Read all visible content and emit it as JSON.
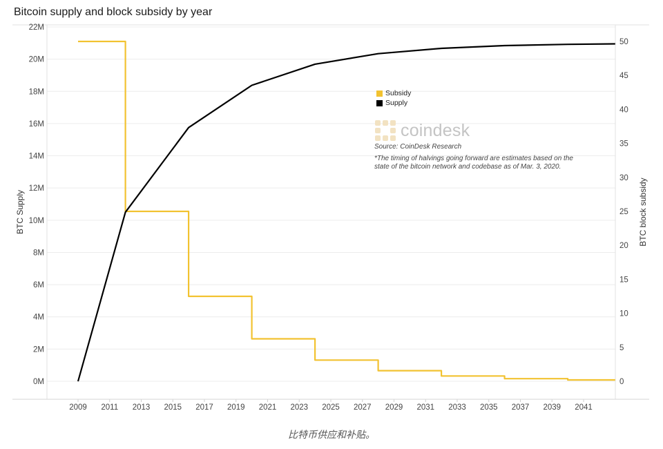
{
  "chart_data": {
    "type": "line",
    "title": "Bitcoin supply and block subsidy by year",
    "ylabel": "BTC Supply",
    "y2label": "BTC block subsidy",
    "xlim": [
      2008,
      2043
    ],
    "ylim": [
      0,
      22
    ],
    "y2lim": [
      0,
      50
    ],
    "x_ticks": [
      "2009",
      "2011",
      "2013",
      "2015",
      "2017",
      "2019",
      "2021",
      "2023",
      "2025",
      "2027",
      "2029",
      "2031",
      "2033",
      "2035",
      "2037",
      "2039",
      "2041"
    ],
    "y_ticks": [
      "0M",
      "2M",
      "4M",
      "6M",
      "8M",
      "10M",
      "12M",
      "14M",
      "16M",
      "18M",
      "20M",
      "22M"
    ],
    "y2_ticks": [
      "0",
      "5",
      "10",
      "15",
      "20",
      "25",
      "30",
      "35",
      "40",
      "45",
      "50"
    ],
    "grid": true,
    "legend_position": "center-right",
    "series": [
      {
        "name": "Subsidy",
        "axis": "right",
        "color": "#F2C230",
        "step": true,
        "x": [
          2009,
          2012,
          2012,
          2016,
          2016,
          2020,
          2020,
          2024,
          2024,
          2028,
          2028,
          2032,
          2032,
          2036,
          2036,
          2040,
          2040,
          2043
        ],
        "y": [
          50,
          50,
          25,
          25,
          12.5,
          12.5,
          6.25,
          6.25,
          3.125,
          3.125,
          1.5625,
          1.5625,
          0.78,
          0.78,
          0.39,
          0.39,
          0.2,
          0.2
        ]
      },
      {
        "name": "Supply",
        "axis": "left",
        "color": "#000000",
        "x": [
          2009,
          2012,
          2016,
          2020,
          2024,
          2028,
          2032,
          2036,
          2040,
          2043
        ],
        "y": [
          0,
          10.5,
          15.75,
          18.375,
          19.6875,
          20.34,
          20.67,
          20.84,
          20.92,
          20.95
        ]
      }
    ]
  },
  "source": "Source: CoinDesk Research",
  "footnote": "*The timing of halvings going forward are estimates based on the state of the bitcoin network and codebase as of Mar. 3, 2020.",
  "brand": "coindesk",
  "caption": "比特币供应和补贴。"
}
